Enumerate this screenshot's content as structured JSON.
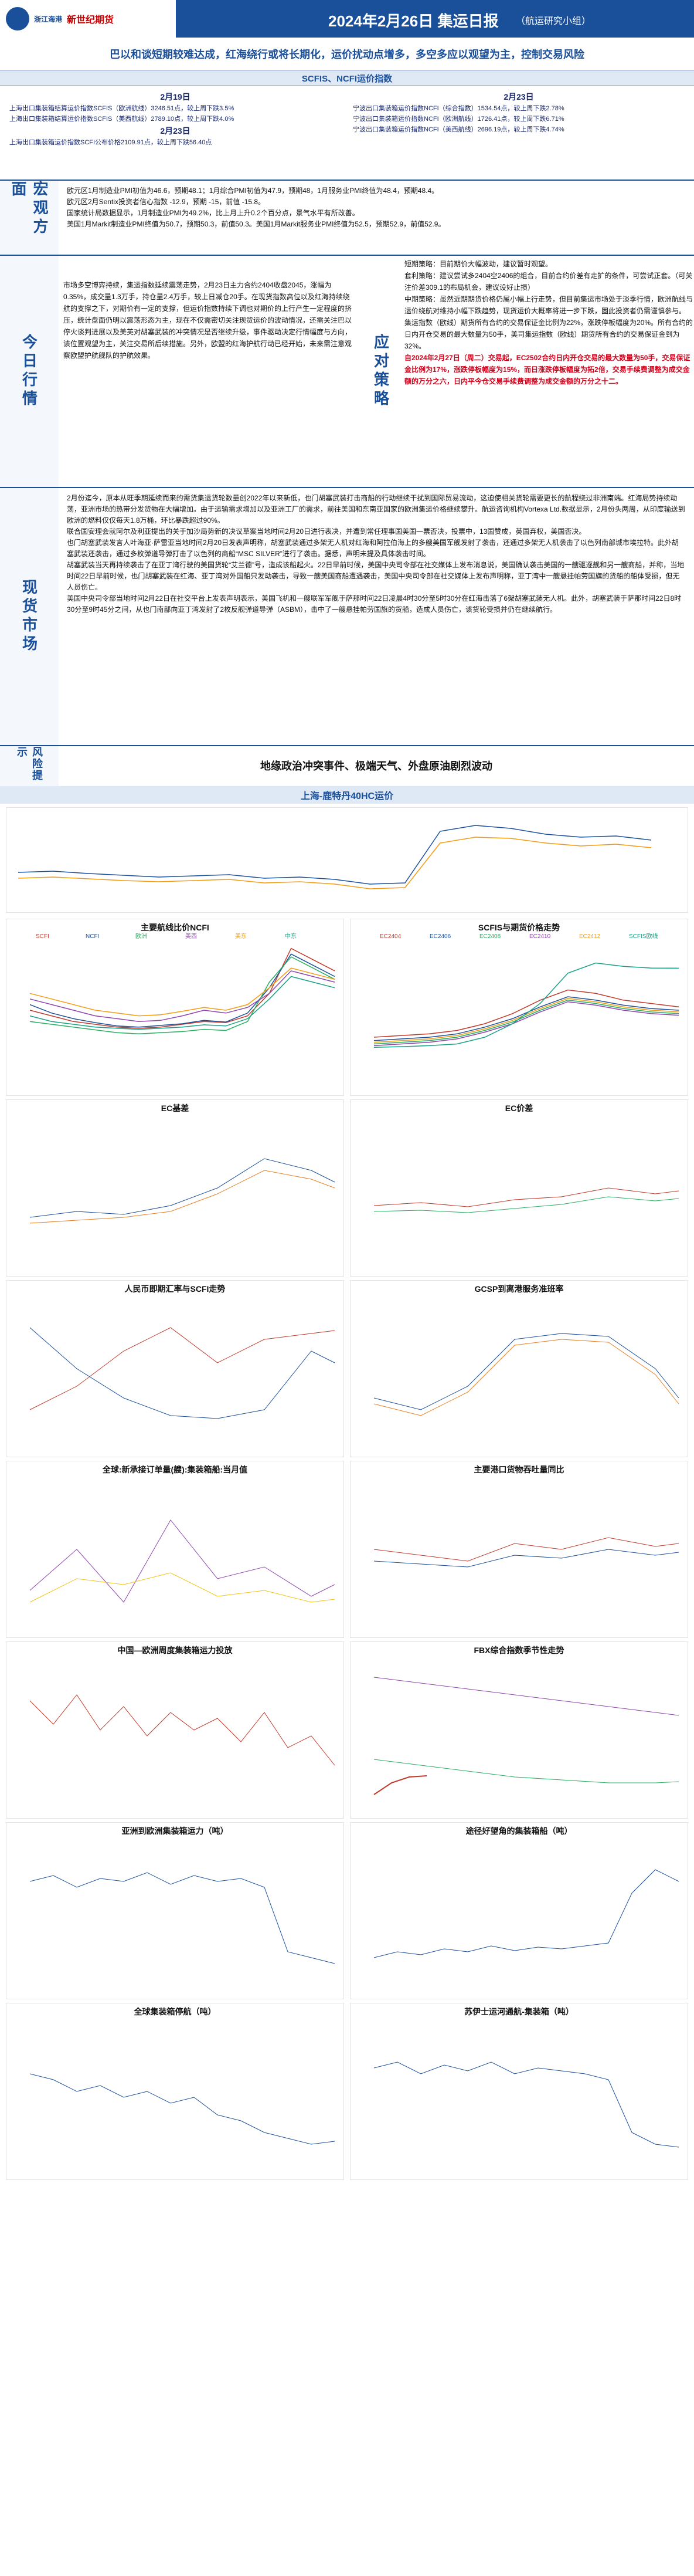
{
  "header": {
    "logo_left": "浙江海港",
    "logo_right": "新世纪期货",
    "title": "2024年2月26日 集运日报",
    "subtitle": "（航运研究小组）"
  },
  "banner": "巴以和谈短期较难达成，红海绕行或将长期化，运价扰动点增多，多空多应以观望为主，控制交易风险",
  "indices_title": "SCFIS、NCFI运价指数",
  "indices": {
    "left_date1": "2月19日",
    "left_lines1": [
      "上海出口集装箱结算运价指数SCFIS（欧洲航线）3246.51点，较上周下跌3.5%",
      "上海出口集装箱结算运价指数SCFIS（美西航线）2789.10点，较上周下跌4.0%"
    ],
    "left_date2": "2月23日",
    "left_lines2": [
      "上海出口集装箱运价指数SCFI公布价格2109.91点，较上周下跌56.40点"
    ],
    "right_date": "2月23日",
    "right_lines": [
      "宁波出口集装箱运价指数NCFI（综合指数）1534.54点，较上周下跌2.78%",
      "宁波出口集装箱运价指数NCFI（欧洲航线）1726.41点，较上周下跌6.71%",
      "宁波出口集装箱运价指数NCFI（美西航线）2696.19点，较上周下跌4.74%"
    ]
  },
  "macro": {
    "label": "宏观方面",
    "lines": [
      "欧元区1月制造业PMI初值为46.6，预期48.1；1月综合PMI初值为47.9，预期48，1月服务业PMI终值为48.4，预期48.4。",
      "欧元区2月Sentix投资者信心指数 -12.9，预期 -15，前值 -15.8。",
      "国家统计局数据显示，1月制造业PMI为49.2%，比上月上升0.2个百分点，景气水平有所改善。",
      "美国1月Markit制造业PMI终值为50.7，预期50.3，前值50.3。美国1月Markit服务业PMI终值为52.5，预期52.9，前值52.9。"
    ]
  },
  "today": {
    "label": "今日行情",
    "text": "市场多空博弈持续，集运指数延续震荡走势，2月23日主力合约2404收盘2045，涨幅为0.35%，成交量1.3万手，持仓量2.4万手，较上日减仓20手。在现货指数高位以及红海持续绕航的支撑之下，对期价有一定的支撑，但运价指数持续下调也对期价的上行产生一定程度的挤压，统计盘面仍明以震荡形态为主，现在不仅需密切关注现货运价的波动情况，还需关注巴以停火谈判进展以及美英对胡塞武装的冲突情况是否继续升级，事件驱动决定行情幅度与方向，该位置观望为主，关注交易所后续措施。另外，欧盟的红海护航行动已经开始，未来需注意观察欧盟护航舰队的护航效果。",
    "strategy_label": "应对策略",
    "strategy": [
      "短期策略：目前期价大幅波动，建议暂时观望。",
      "套利策略：建议尝试多2404空2406的组合，目前合约价差有走扩的条件，可尝试正套。（可关注价差309.1的布局机会，建议设好止损）",
      "中期策略：虽然近期期货价格仍属小幅上行走势，但目前集运市场处于淡季行情，欧洲航线与运价绕航对维持小幅下跌趋势，现货运价大概率将进一步下跌，固此投资者仍需谨慎参与。",
      "集运指数（欧线）期货所有合约的交易保证金比例为22%，涨跌停板幅度为20%。所有合约的日内开仓交易的最大数量为50手，美司集运指数（欧线）期货所有合约的交易保证金到为32%。"
    ],
    "strategy_red": "自2024年2月27日（周二）交易起，EC2502合约日内开仓交易的最大数量为50手，交易保证金比例为17%，涨跌停板幅度为15%，而日涨跌停板幅度为拓2倍，交易手续费调整为成交金额的万分之六，日内平今仓交易手续费调整为成交金额的万分之十二。"
  },
  "spot": {
    "label": "现货市场",
    "paragraphs": [
      "2月份迄今，原本从旺季期延续而来的需货集运货轮数量创2022年以来新低，也门胡塞武装打击商船的行动继续干扰到国际贸易流动，这迫使相关货轮需要更长的航程绕过非洲南端。红海局势持续动荡，亚洲市场的热带分发货物在大幅增加。由于运输需求增加以及亚洲工厂的需求，前往美国和东南亚国家的欧洲集运价格继续攀升。航运咨询机构Vortexa Ltd.数据显示，2月份头两周，从印度输送到欧洲的燃料仅仅每天1.8万桶，环比暴跌超过90%。",
      "联合国安理会就阿尔及利亚提出的关于加沙局势新的决议草案当地时间2月20日进行表决，并遭到常任理事国美国一票否决，投票中，13国赞成，英国弃权，美国否决。",
      "也门胡塞武装发言人叶海亚·萨雷亚当地时间2月20日发表声明称，胡塞武装通过多架无人机对红海和阿拉伯海上的多艘美国军舰发射了袭击，还通过多架无人机袭击了以色列南部城市埃拉特。此外胡塞武装还袭击，通过多枚弹道导弹打击了以色列的商船“MSC SILVER”进行了袭击。据悉，声明未提及具体袭击时间。",
      "胡塞武装当天再持续袭击了在亚丁湾行驶的美国货轮“艾兰德”号，造成该船起火。22日早前时候，美国中央司令部在社交媒体上发布消息说，美国确认袭击美国的一艘驱逐舰和另一艘商船，并称，当地时间22日早前时候，也门胡塞武装在红海、亚丁湾对外国船只发动袭击，导致一艘美国商船遭遇袭击，美国中央司令部在社交媒体上发布声明称，亚丁湾中一艘悬挂帕劳国旗的货船的船体受损，但无人员伤亡。",
      "美国中央司令部当地时间2月22日在社交平台上发表声明表示，美国飞机和一艘联军军舰于萨那时间22日凌晨4时30分至5时30分在红海击落了6架胡塞武装无人机。此外，胡塞武装于萨那时间22日8时30分至9时45分之间，从也门南部向亚丁湾发射了2枚反舰弹道导弹（ASBM），击中了一艘悬挂帕劳国旗的货船，造成人员伤亡，该货轮受损并仍在继续航行。"
    ]
  },
  "risk": {
    "label": "风险提示",
    "text": "地缘政治冲突事件、极端天气、外盘原油剧烈波动"
  },
  "charts_title": "上海-鹿特丹40HC运价",
  "chart_titles": {
    "c1": "主要航线比价NCFI",
    "c2": "SCFIS与期货价格走势",
    "c3": "EC基差",
    "c4": "EC价差",
    "c5": "人民币即期汇率与SCFI走势",
    "c6": "GCSP到离港服务准班率",
    "c7": "全球:新承接订单量(艘):集装箱船:当月值",
    "c8": "主要港口货物吞吐量同比",
    "c9": "中国—欧洲周度集装箱运力投放",
    "c10": "FBX综合指数季节性走势",
    "c11": "亚洲到欧洲集装箱运力（吨）",
    "c12": "途径好望角的集装箱船（吨）",
    "c13": "全球集装箱停航（吨）",
    "c14": "苏伊士运河通航-集装箱（吨）"
  },
  "chart_data": [
    {
      "type": "line",
      "title": "主要航线比价NCFI",
      "series": [
        {
          "name": "SCFI",
          "values": [
            1200,
            1100,
            1000,
            950,
            900,
            880,
            900,
            950,
            1000,
            980,
            1100,
            1500,
            2300,
            2100,
            1900
          ]
        },
        {
          "name": "NCFI",
          "values": [
            1300,
            1150,
            1050,
            980,
            920,
            900,
            930,
            960,
            1020,
            990,
            1150,
            1600,
            2200,
            2000,
            1800
          ]
        },
        {
          "name": "欧洲",
          "values": [
            1000,
            950,
            900,
            850,
            800,
            780,
            800,
            820,
            860,
            840,
            1000,
            1700,
            2150,
            1950,
            1750
          ]
        },
        {
          "name": "美西",
          "values": [
            1400,
            1300,
            1200,
            1100,
            1050,
            1000,
            1020,
            1100,
            1200,
            1150,
            1250,
            1500,
            1900,
            1800,
            1700
          ]
        },
        {
          "name": "美东",
          "values": [
            1500,
            1400,
            1300,
            1200,
            1150,
            1100,
            1120,
            1180,
            1250,
            1200,
            1300,
            1600,
            1950,
            1850,
            1750
          ]
        },
        {
          "name": "中东",
          "values": [
            1100,
            1000,
            950,
            900,
            880,
            860,
            880,
            900,
            940,
            920,
            1050,
            1400,
            1800,
            1700,
            1600
          ]
        }
      ],
      "ylim": [
        0,
        2400
      ]
    },
    {
      "type": "line",
      "title": "SCFIS与期货价格走势",
      "series": [
        {
          "name": "EC2404",
          "values": [
            1200,
            1250,
            1300,
            1400,
            1600,
            1900,
            2300,
            2600,
            2500,
            2300,
            2200,
            2100
          ]
        },
        {
          "name": "EC2406",
          "values": [
            1100,
            1150,
            1200,
            1300,
            1500,
            1750,
            2100,
            2400,
            2300,
            2150,
            2050,
            2000
          ]
        },
        {
          "name": "EC2408",
          "values": [
            1000,
            1050,
            1100,
            1200,
            1400,
            1650,
            2000,
            2300,
            2200,
            2050,
            1950,
            1900
          ]
        },
        {
          "name": "EC2410",
          "values": [
            950,
            1000,
            1050,
            1150,
            1350,
            1600,
            1950,
            2250,
            2150,
            2000,
            1900,
            1850
          ]
        },
        {
          "name": "EC2412",
          "values": [
            1050,
            1100,
            1150,
            1250,
            1450,
            1700,
            2050,
            2350,
            2250,
            2100,
            2000,
            1950
          ]
        },
        {
          "name": "SCFIS欧线",
          "values": [
            900,
            920,
            950,
            1000,
            1200,
            1600,
            2200,
            3100,
            3400,
            3300,
            3250,
            3246
          ]
        }
      ],
      "ylim": [
        0,
        4000
      ]
    }
  ]
}
